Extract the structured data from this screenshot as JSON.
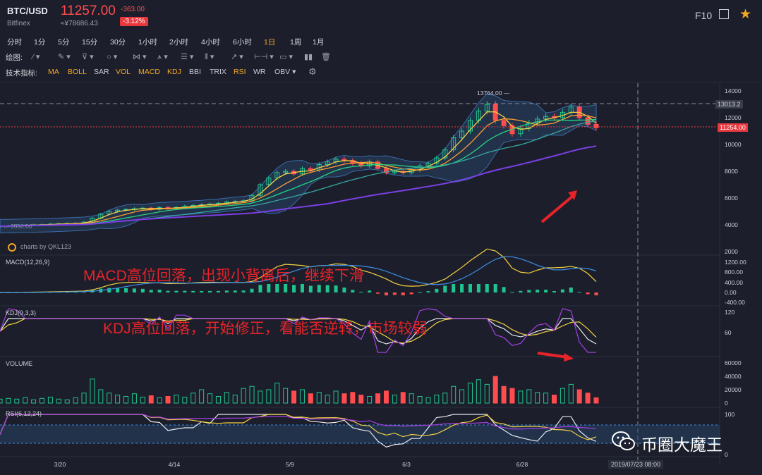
{
  "header": {
    "pair": "BTC/USD",
    "exchange": "Bitfinex",
    "price": "11257.00",
    "cny": "≈¥78686.43",
    "change": "-363.00",
    "change_pct": "-3.12%",
    "f10": "F10",
    "colors": {
      "down": "#ff4d4f",
      "accent": "#f5a623"
    }
  },
  "timeframes": [
    "分时",
    "1分",
    "5分",
    "15分",
    "30分",
    "1小时",
    "2小时",
    "4小时",
    "6小时",
    "1日",
    "1周",
    "1月"
  ],
  "active_timeframe": "1日",
  "drawing_label": "绘图:",
  "indicator_label": "技术指标:",
  "indicators": [
    {
      "label": "MA",
      "on": true
    },
    {
      "label": "BOLL",
      "on": true
    },
    {
      "label": "SAR",
      "on": false
    },
    {
      "label": "VOL",
      "on": true
    },
    {
      "label": "MACD",
      "on": true
    },
    {
      "label": "KDJ",
      "on": true
    },
    {
      "label": "BBI",
      "on": false
    },
    {
      "label": "TRIX",
      "on": false
    },
    {
      "label": "RSI",
      "on": true
    },
    {
      "label": "WR",
      "on": false
    },
    {
      "label": "OBV",
      "on": false
    }
  ],
  "panels": {
    "macd": "MACD(12,26,9)",
    "kdj": "KDJ(9,3,3)",
    "volume": "VOLUME",
    "rsi": "RSI(6,12,24)"
  },
  "annotations": {
    "macd": "MACD高位回落，出现小背离后，继续下滑",
    "kdj": "KDJ高位回落，开始修正，看能否逆转，市场较弱"
  },
  "credit": "charts by QKL123",
  "watermark": "币圈大魔王",
  "crosshair_date": "2019/07/23 08:00",
  "chart_data": {
    "type": "line",
    "x_ticks": [
      "3/20",
      "4/14",
      "5/9",
      "6/3",
      "6/28"
    ],
    "price_axis": {
      "ticks": [
        14000,
        12000,
        10000,
        8000,
        6000,
        4000,
        2000
      ],
      "ylim": [
        2000,
        14000
      ]
    },
    "macd_axis": {
      "ticks": [
        "1200.00",
        "800.00",
        "400.00",
        "0.00",
        "-400.00"
      ]
    },
    "kdj_axis": {
      "ticks": [
        "120",
        "60"
      ]
    },
    "volume_axis": {
      "ticks": [
        "60000",
        "40000",
        "20000",
        "0"
      ]
    },
    "rsi_axis": {
      "ticks": [
        "100",
        "0"
      ]
    },
    "max_label": "13764.00",
    "min_label": "3550.00",
    "crosshair_price": "13013.2",
    "last_price": "11254.00",
    "close": [
      3900,
      3920,
      3950,
      3980,
      4000,
      4020,
      4050,
      4080,
      4100,
      4120,
      4200,
      4500,
      4800,
      5000,
      5100,
      5150,
      5200,
      5250,
      5150,
      5300,
      5200,
      5300,
      5400,
      5450,
      5500,
      5550,
      5600,
      5700,
      5750,
      5800,
      6200,
      7000,
      7500,
      7900,
      8000,
      7800,
      8200,
      8100,
      8500,
      8700,
      8900,
      8800,
      8600,
      8400,
      8700,
      8200,
      7900,
      8000,
      7900,
      8100,
      8400,
      8600,
      9000,
      9600,
      10500,
      11000,
      11800,
      12500,
      13000,
      11800,
      11400,
      10800,
      11200,
      11600,
      11900,
      12100,
      12000,
      12400,
      12800,
      12000,
      11500,
      11254
    ],
    "volume": [
      6000,
      7000,
      6000,
      8000,
      5000,
      7000,
      9000,
      6000,
      5000,
      8000,
      15000,
      36000,
      20000,
      15000,
      12000,
      10000,
      14000,
      9000,
      11000,
      8000,
      10000,
      12000,
      9000,
      15000,
      20000,
      14000,
      10000,
      16000,
      12000,
      22000,
      25000,
      18000,
      20000,
      30000,
      22000,
      18000,
      20000,
      14000,
      16000,
      12000,
      18000,
      14000,
      16000,
      12000,
      10000,
      14000,
      18000,
      12000,
      16000,
      14000,
      10000,
      8000,
      12000,
      15000,
      25000,
      20000,
      30000,
      35000,
      28000,
      40000,
      25000,
      22000,
      18000,
      20000,
      16000,
      15000,
      12000,
      22000,
      28000,
      20000,
      15000,
      8000
    ]
  }
}
